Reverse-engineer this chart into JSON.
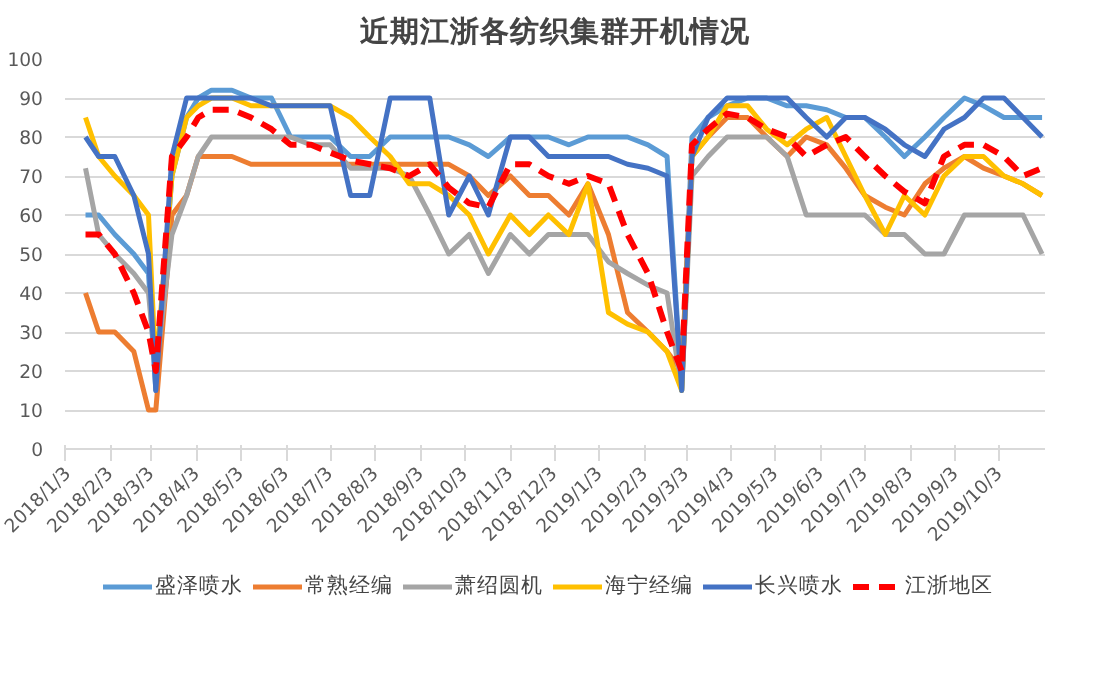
{
  "chart_data": {
    "type": "line",
    "title": "近期江浙各纺织集群开机情况",
    "x": [
      "2018-01-17",
      "2018-01-26",
      "2018-02-06",
      "2018-02-19",
      "2018-03-01",
      "2018-03-06",
      "2018-03-17",
      "2018-03-27",
      "2018-04-04",
      "2018-04-13",
      "2018-04-27",
      "2018-05-10",
      "2018-05-24",
      "2018-06-06",
      "2018-06-20",
      "2018-07-03",
      "2018-07-17",
      "2018-07-30",
      "2018-08-13",
      "2018-08-26",
      "2018-09-09",
      "2018-09-22",
      "2018-10-06",
      "2018-10-19",
      "2018-11-03",
      "2018-11-16",
      "2018-11-29",
      "2018-12-13",
      "2018-12-26",
      "2019-01-09",
      "2019-01-22",
      "2019-02-05",
      "2019-02-18",
      "2019-02-28",
      "2019-03-07",
      "2019-03-18",
      "2019-03-31",
      "2019-04-14",
      "2019-04-27",
      "2019-05-11",
      "2019-05-24",
      "2019-06-07",
      "2019-06-20",
      "2019-07-03",
      "2019-07-17",
      "2019-07-30",
      "2019-08-13",
      "2019-08-26",
      "2019-09-09",
      "2019-09-22",
      "2019-10-06",
      "2019-10-19",
      "2019-11-01"
    ],
    "xlim": [
      "2018-01-03",
      "2019-11-03"
    ],
    "xticks": [
      {
        "value": "2018-01-03",
        "label": "2018/1/3"
      },
      {
        "value": "2018-02-03",
        "label": "2018/2/3"
      },
      {
        "value": "2018-03-03",
        "label": "2018/3/3"
      },
      {
        "value": "2018-04-03",
        "label": "2018/4/3"
      },
      {
        "value": "2018-05-03",
        "label": "2018/5/3"
      },
      {
        "value": "2018-06-03",
        "label": "2018/6/3"
      },
      {
        "value": "2018-07-03",
        "label": "2018/7/3"
      },
      {
        "value": "2018-08-03",
        "label": "2018/8/3"
      },
      {
        "value": "2018-09-03",
        "label": "2018/9/3"
      },
      {
        "value": "2018-10-03",
        "label": "2018/10/3"
      },
      {
        "value": "2018-11-03",
        "label": "2018/11/3"
      },
      {
        "value": "2018-12-03",
        "label": "2018/12/3"
      },
      {
        "value": "2019-01-03",
        "label": "2019/1/3"
      },
      {
        "value": "2019-02-03",
        "label": "2019/2/3"
      },
      {
        "value": "2019-03-03",
        "label": "2019/3/3"
      },
      {
        "value": "2019-04-03",
        "label": "2019/4/3"
      },
      {
        "value": "2019-05-03",
        "label": "2019/5/3"
      },
      {
        "value": "2019-06-03",
        "label": "2019/6/3"
      },
      {
        "value": "2019-07-03",
        "label": "2019/7/3"
      },
      {
        "value": "2019-08-03",
        "label": "2019/8/3"
      },
      {
        "value": "2019-09-03",
        "label": "2019/9/3"
      },
      {
        "value": "2019-10-03",
        "label": "2019/10/3"
      }
    ],
    "ylim": [
      0,
      100
    ],
    "yticks": [
      0,
      10,
      20,
      30,
      40,
      50,
      60,
      70,
      80,
      90,
      100
    ],
    "grid": "y",
    "legend": "bottom",
    "series": [
      {
        "name": "盛泽喷水",
        "color": "#5b9bd5",
        "values": [
          60,
          60,
          55,
          50,
          45,
          15,
          70,
          85,
          90,
          92,
          92,
          90,
          90,
          80,
          80,
          80,
          75,
          75,
          80,
          80,
          80,
          80,
          78,
          75,
          80,
          80,
          80,
          78,
          80,
          80,
          80,
          78,
          75,
          15,
          80,
          85,
          88,
          90,
          90,
          88,
          88,
          87,
          85,
          85,
          80,
          75,
          80,
          85,
          90,
          88,
          85,
          85,
          85
        ]
      },
      {
        "name": "常熟经编",
        "color": "#ed7d31",
        "values": [
          40,
          30,
          30,
          25,
          10,
          10,
          60,
          65,
          75,
          75,
          75,
          73,
          73,
          73,
          73,
          73,
          73,
          73,
          73,
          73,
          73,
          73,
          70,
          65,
          70,
          65,
          65,
          60,
          68,
          55,
          35,
          30,
          25,
          20,
          75,
          80,
          85,
          85,
          80,
          75,
          80,
          78,
          72,
          65,
          62,
          60,
          68,
          72,
          75,
          72,
          70,
          68,
          65
        ]
      },
      {
        "name": "萧绍圆机",
        "color": "#a5a5a5",
        "values": [
          72,
          55,
          50,
          45,
          40,
          20,
          55,
          65,
          75,
          80,
          80,
          80,
          80,
          80,
          78,
          78,
          72,
          72,
          72,
          70,
          60,
          50,
          55,
          45,
          55,
          50,
          55,
          55,
          55,
          48,
          45,
          42,
          40,
          15,
          70,
          75,
          80,
          80,
          80,
          75,
          60,
          60,
          60,
          60,
          55,
          55,
          50,
          50,
          60,
          60,
          60,
          60,
          50
        ]
      },
      {
        "name": "海宁经编",
        "color": "#ffc000",
        "values": [
          85,
          75,
          70,
          65,
          60,
          20,
          70,
          85,
          88,
          90,
          90,
          88,
          88,
          88,
          88,
          88,
          85,
          80,
          75,
          68,
          68,
          65,
          60,
          50,
          60,
          55,
          60,
          55,
          68,
          35,
          32,
          30,
          25,
          15,
          75,
          80,
          88,
          88,
          82,
          78,
          82,
          85,
          75,
          65,
          55,
          65,
          60,
          70,
          75,
          75,
          70,
          68,
          65
        ]
      },
      {
        "name": "长兴喷水",
        "color": "#4472c4",
        "values": [
          80,
          75,
          75,
          65,
          50,
          15,
          75,
          90,
          90,
          90,
          90,
          90,
          88,
          88,
          88,
          88,
          65,
          65,
          90,
          90,
          90,
          60,
          70,
          60,
          80,
          80,
          75,
          75,
          75,
          75,
          73,
          72,
          70,
          15,
          75,
          85,
          90,
          90,
          90,
          90,
          85,
          80,
          85,
          85,
          82,
          78,
          75,
          82,
          85,
          90,
          90,
          85,
          80
        ]
      },
      {
        "name": "江浙地区",
        "color": "#ff0000",
        "line_style": "dashed",
        "values": [
          55,
          55,
          50,
          40,
          30,
          20,
          75,
          80,
          85,
          87,
          87,
          85,
          82,
          78,
          78,
          76,
          74,
          73,
          72,
          70,
          73,
          67,
          63,
          62,
          73,
          73,
          70,
          68,
          70,
          68,
          55,
          45,
          30,
          20,
          78,
          82,
          86,
          85,
          82,
          80,
          75,
          78,
          80,
          75,
          70,
          66,
          63,
          75,
          78,
          78,
          75,
          70,
          72
        ]
      }
    ]
  }
}
